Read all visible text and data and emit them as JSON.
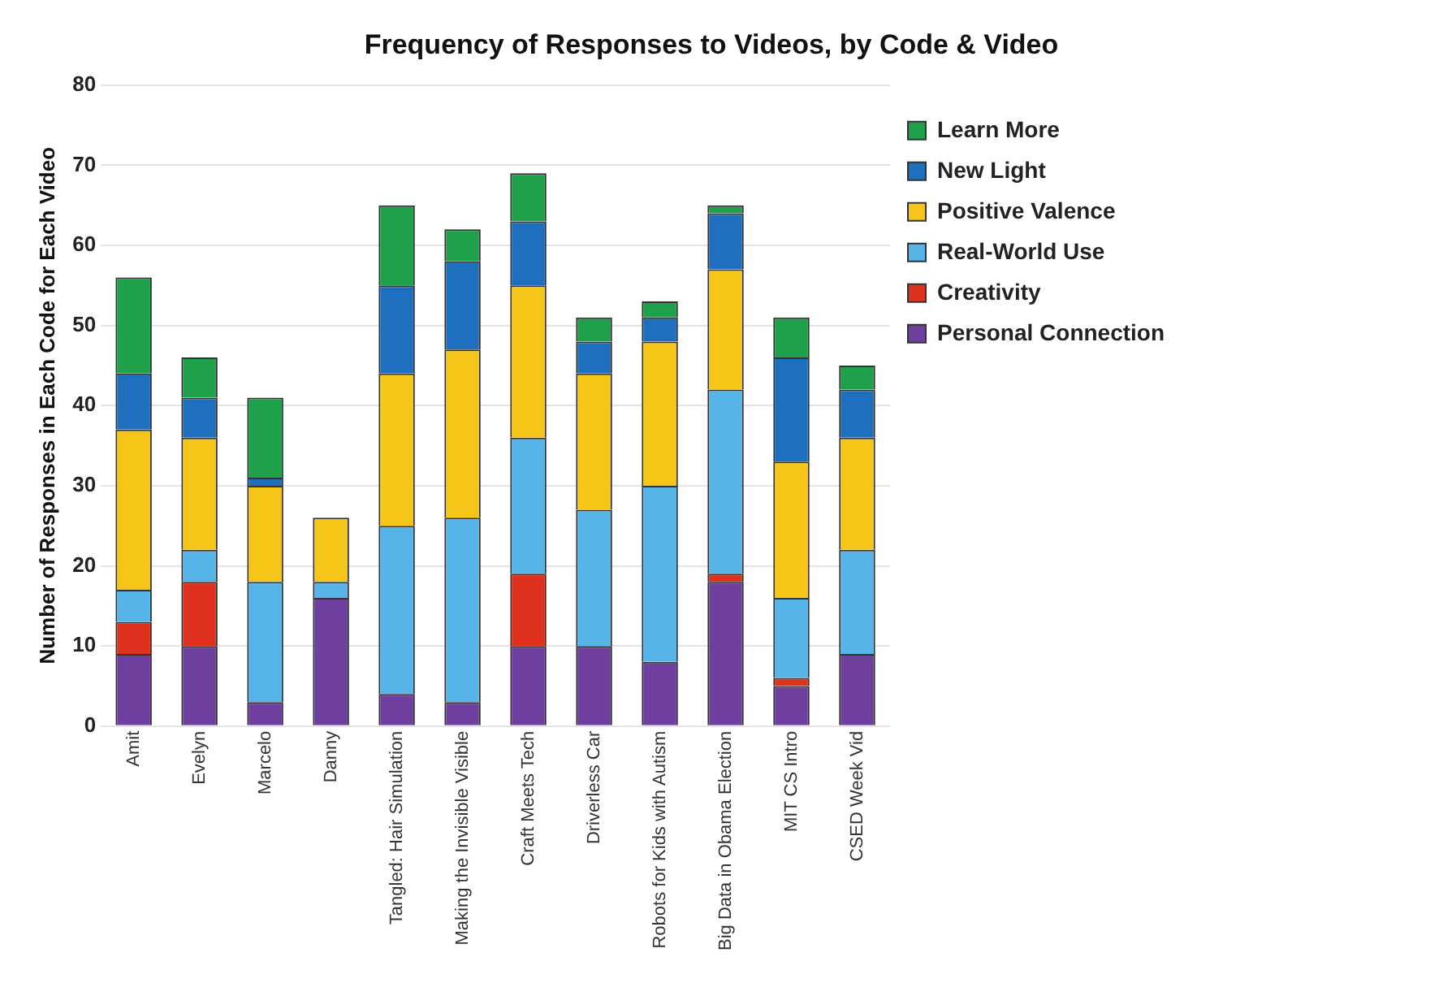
{
  "chart_data": {
    "type": "bar",
    "title": "Frequency of Responses to Videos, by Code & Video",
    "ylabel": "Number of Responses in Each Code for Each Video",
    "categories": [
      "Amit",
      "Evelyn",
      "Marcelo",
      "Danny",
      "Tangled: Hair Simulation",
      "Making the Invisible Visible",
      "Craft Meets Tech",
      "Driverless Car",
      "Robots for Kids with Autism",
      "Big Data in Obama Election",
      "MIT CS Intro",
      "CSED Week Vid"
    ],
    "stacked": true,
    "ylim": [
      0,
      80
    ],
    "yticks": [
      0,
      10,
      20,
      30,
      40,
      50,
      60,
      70,
      80
    ],
    "grid": "y",
    "legend": "right",
    "series": [
      {
        "name": "Personal Connection",
        "color": "#6f3fa0",
        "values": [
          9,
          10,
          3,
          16,
          4,
          3,
          10,
          10,
          8,
          18,
          5,
          9
        ]
      },
      {
        "name": "Creativity",
        "color": "#e0301e",
        "values": [
          4,
          8,
          0,
          0,
          0,
          0,
          9,
          0,
          0,
          1,
          1,
          0
        ]
      },
      {
        "name": "Real-World Use",
        "color": "#56b4e9",
        "values": [
          4,
          4,
          15,
          2,
          21,
          23,
          17,
          17,
          22,
          23,
          10,
          13
        ]
      },
      {
        "name": "Positive Valence",
        "color": "#f5c518",
        "values": [
          20,
          14,
          12,
          8,
          19,
          21,
          19,
          17,
          18,
          15,
          17,
          14
        ]
      },
      {
        "name": "New Light",
        "color": "#1f6fbf",
        "values": [
          7,
          5,
          1,
          0,
          11,
          11,
          8,
          4,
          3,
          7,
          13,
          6
        ]
      },
      {
        "name": "Learn More",
        "color": "#1fa04b",
        "values": [
          12,
          5,
          10,
          0,
          10,
          4,
          6,
          3,
          2,
          1,
          5,
          3
        ]
      }
    ]
  }
}
